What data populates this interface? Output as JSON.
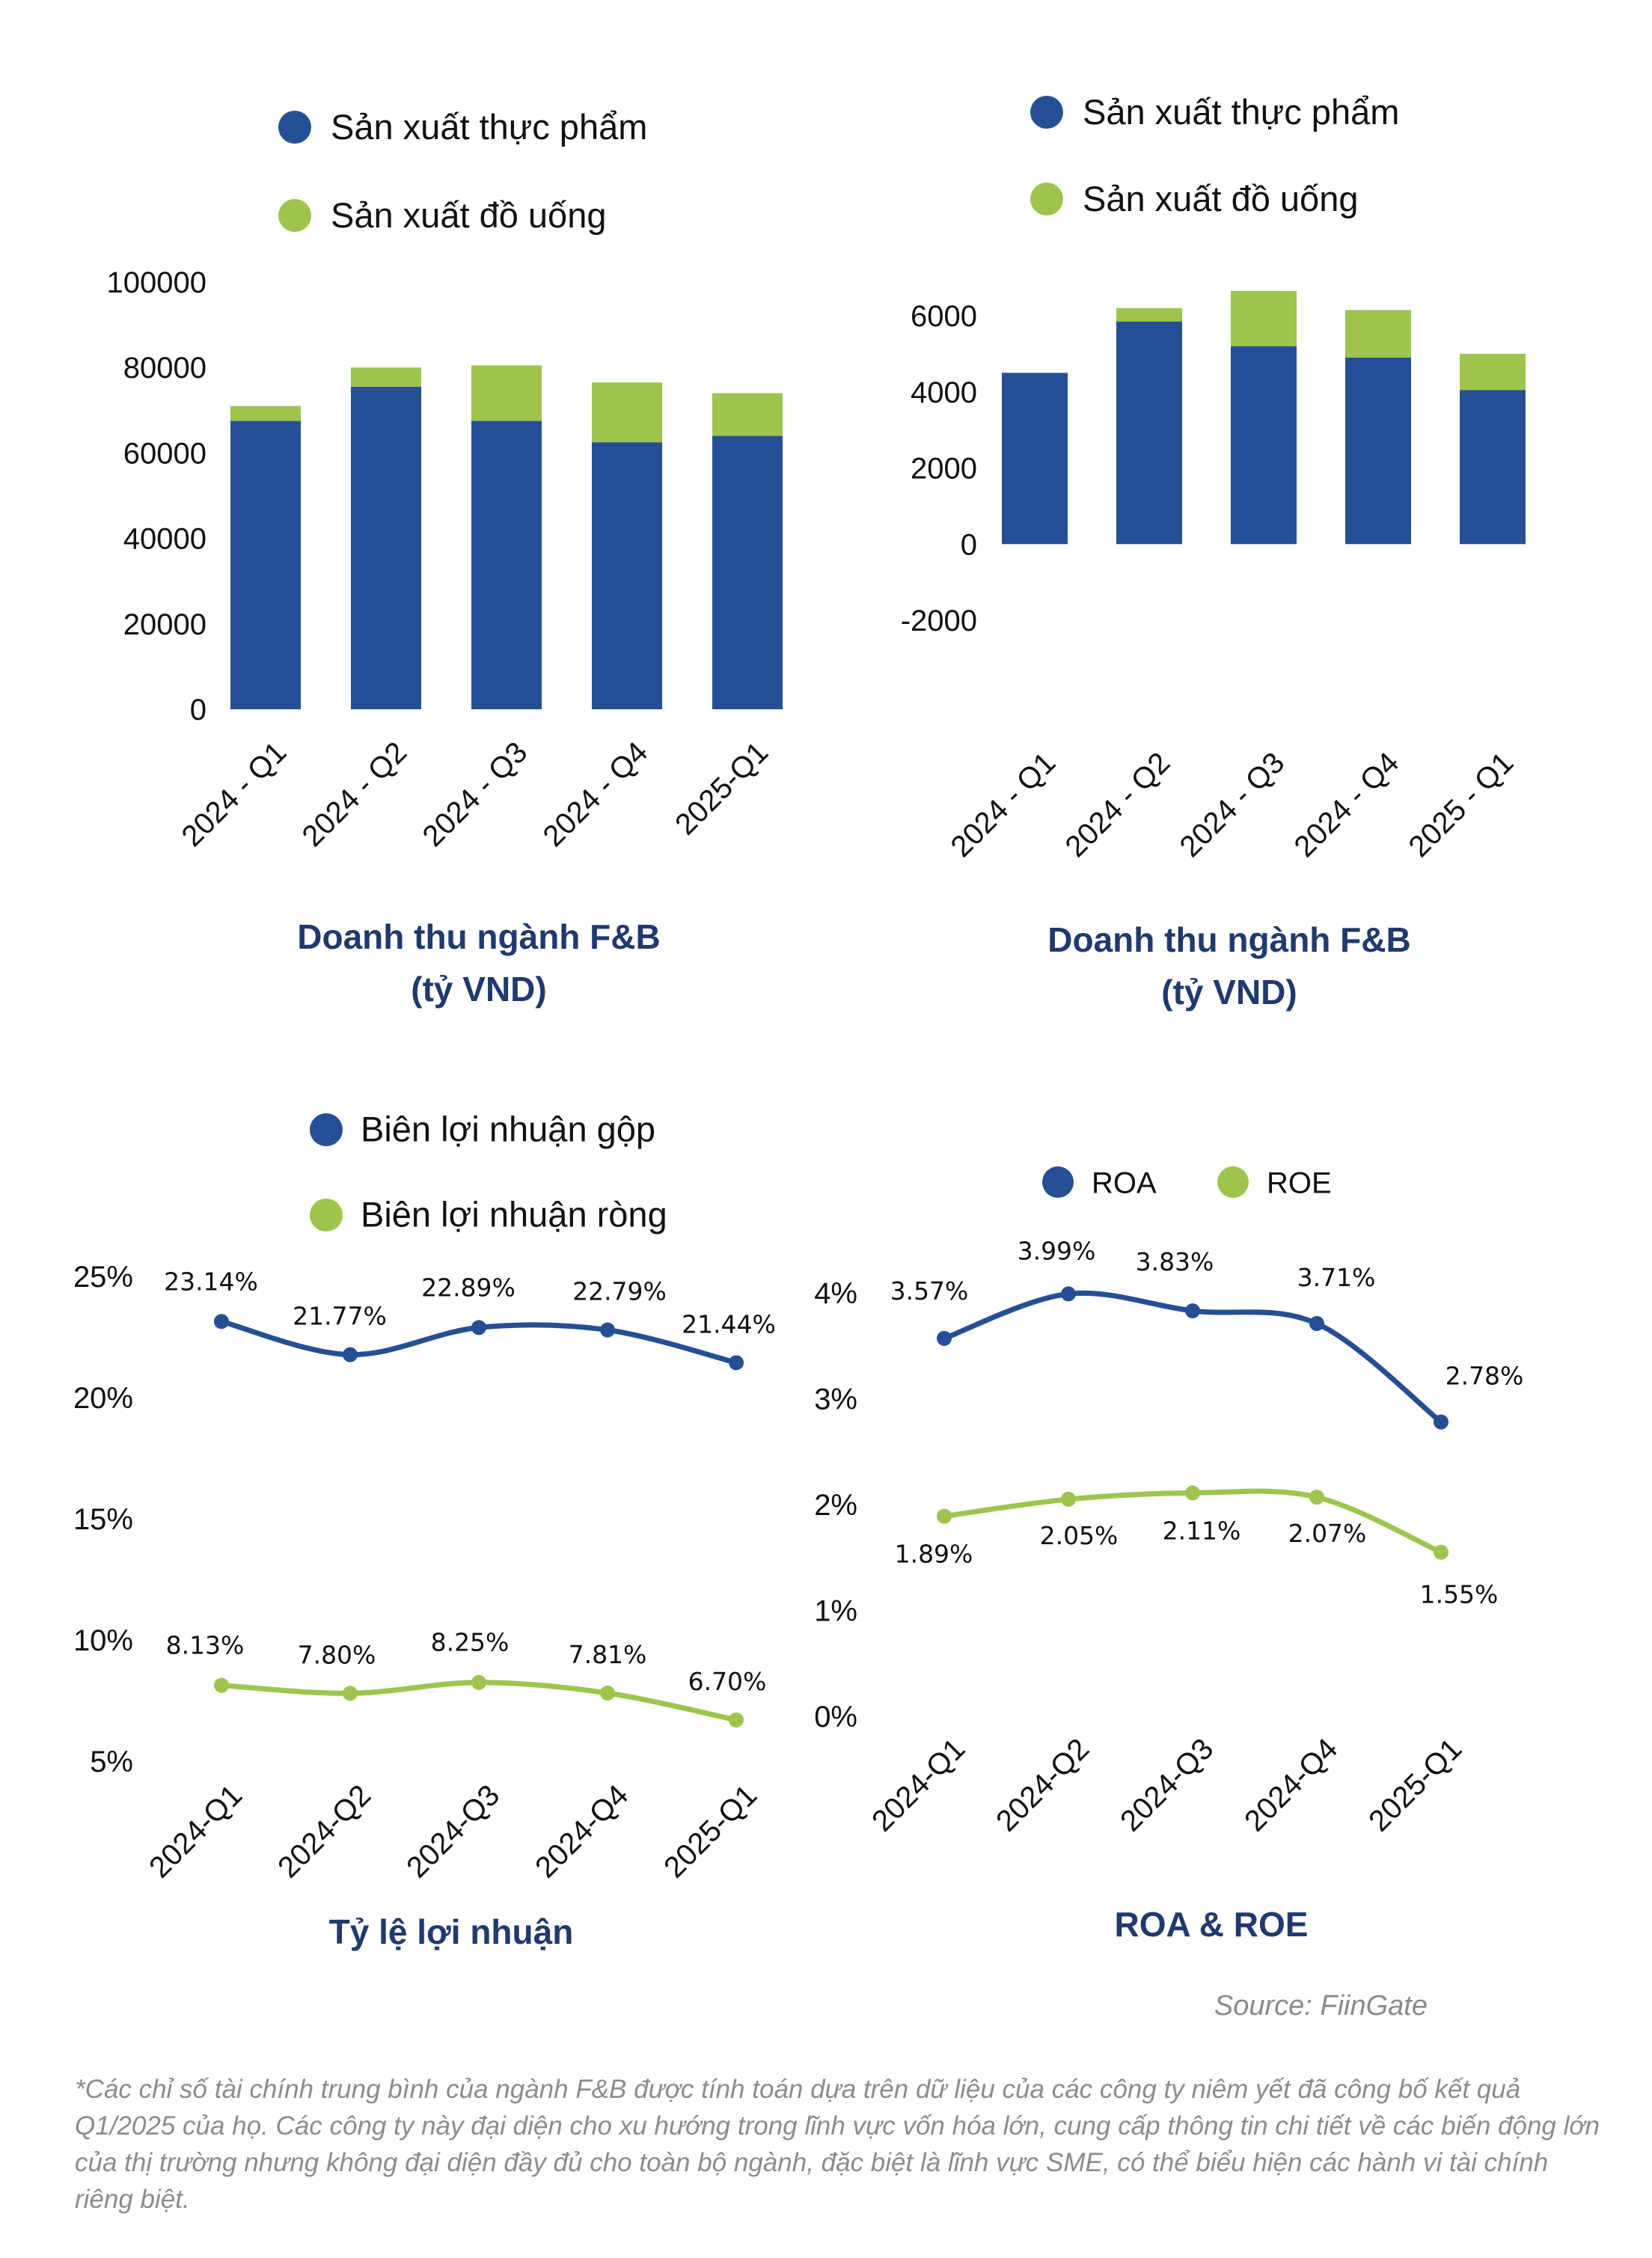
{
  "colors": {
    "food": "#254f95",
    "beverage": "#9dc54e",
    "title": "#1e3a6e"
  },
  "source": "Source: FiinGate",
  "footnote": "*Các chỉ số tài chính trung bình của ngành F&B được tính toán dựa trên dữ liệu của các công ty niêm yết đã công bố kết quả Q1/2025 của họ. Các công ty này đại diện cho xu hướng trong lĩnh vực vốn hóa lớn, cung cấp thông tin chi tiết về các biến động lớn của thị trường nhưng không đại diện đầy đủ cho toàn bộ ngành, đặc biệt là lĩnh vực SME, có thể biểu hiện các hành vi tài chính riêng biệt.",
  "chart_data": [
    {
      "type": "bar",
      "stacked": true,
      "title": [
        "Doanh thu ngành F&B",
        "(tỷ VND)"
      ],
      "categories": [
        "2024 - Q1",
        "2024 - Q2",
        "2024 - Q3",
        "2024 - Q4",
        "2025-Q1"
      ],
      "series": [
        {
          "name": "Sản xuất thực phẩm",
          "values": [
            67500,
            75500,
            67500,
            62500,
            64000
          ]
        },
        {
          "name": "Sản xuất đồ uống",
          "values": [
            3500,
            4500,
            13000,
            14000,
            10000
          ]
        }
      ],
      "ylim": [
        0,
        100000
      ],
      "yticks": [
        0,
        20000,
        40000,
        60000,
        80000,
        100000
      ],
      "legend": "top",
      "grid": false
    },
    {
      "type": "bar",
      "stacked": true,
      "title": [
        "Doanh thu ngành F&B",
        "(tỷ VND)"
      ],
      "categories": [
        "2024 - Q1",
        "2024 - Q2",
        "2024 - Q3",
        "2024 - Q4",
        "2025 - Q1"
      ],
      "series": [
        {
          "name": "Sản xuất thực phẩm",
          "values": [
            4500,
            5850,
            5200,
            4900,
            4050
          ]
        },
        {
          "name": "Sản xuất đồ uống",
          "values": [
            0,
            350,
            1450,
            1250,
            950
          ]
        }
      ],
      "ylim": [
        -2000,
        6000
      ],
      "yticks": [
        -2000,
        0,
        2000,
        4000,
        6000
      ],
      "legend": "top",
      "grid": false
    },
    {
      "type": "line",
      "title": [
        "Tỷ lệ lợi nhuận"
      ],
      "categories": [
        "2024-Q1",
        "2024-Q2",
        "2024-Q3",
        "2024-Q4",
        "2025-Q1"
      ],
      "series": [
        {
          "name": "Biên lợi nhuận gộp",
          "values": [
            23.14,
            21.77,
            22.89,
            22.79,
            21.44
          ],
          "labels": [
            "23.14%",
            "21.77%",
            "22.89%",
            "22.79%",
            "21.44%"
          ]
        },
        {
          "name": "Biên lợi nhuận ròng",
          "values": [
            8.13,
            7.8,
            8.25,
            7.81,
            6.7
          ],
          "labels": [
            "8.13%",
            "7.80%",
            "8.25%",
            "7.81%",
            "6.70%"
          ]
        }
      ],
      "ylim": [
        5,
        25
      ],
      "yticks": [
        "5%",
        "10%",
        "15%",
        "20%",
        "25%"
      ],
      "legend": "top",
      "grid": false
    },
    {
      "type": "line",
      "title": [
        "ROA & ROE"
      ],
      "categories": [
        "2024-Q1",
        "2024-Q2",
        "2024-Q3",
        "2024-Q4",
        "2025-Q1"
      ],
      "series": [
        {
          "name": "ROA",
          "values": [
            3.57,
            3.99,
            3.83,
            3.71,
            2.78
          ],
          "labels": [
            "3.57%",
            "3.99%",
            "3.83%",
            "3.71%",
            "2.78%"
          ]
        },
        {
          "name": "ROE",
          "values": [
            1.89,
            2.05,
            2.11,
            2.07,
            1.55
          ],
          "labels": [
            "1.89%",
            "2.05%",
            "2.11%",
            "2.07%",
            "1.55%"
          ]
        }
      ],
      "ylim": [
        0,
        4
      ],
      "yticks": [
        "0%",
        "1%",
        "2%",
        "3%",
        "4%"
      ],
      "legend": "top",
      "grid": false
    }
  ]
}
